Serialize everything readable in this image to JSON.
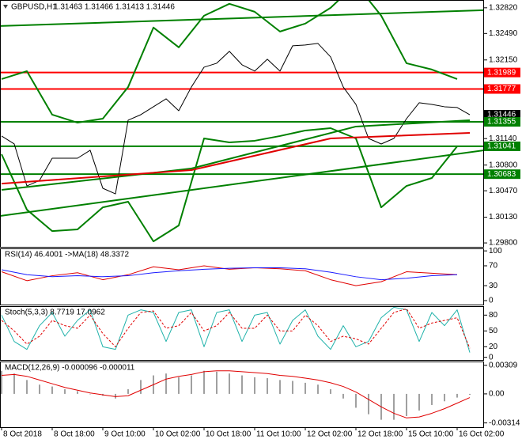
{
  "header": {
    "symbol": "GBPUSD,H1",
    "quote": "1.31463 1.31466 1.31413 1.31446"
  },
  "chart_data": [
    {
      "type": "line",
      "xlim": [
        -0.5,
        152.5
      ],
      "xticks": [
        {
          "value": 0,
          "label": "8 Oct 2018"
        },
        {
          "value": 16,
          "label": "8 Oct 18:00"
        },
        {
          "value": 32,
          "label": "9 Oct 10:00"
        },
        {
          "value": 48,
          "label": "10 Oct 02:00"
        },
        {
          "value": 64,
          "label": "10 Oct 18:00"
        },
        {
          "value": 80,
          "label": "11 Oct 10:00"
        },
        {
          "value": 96,
          "label": "12 Oct 02:00"
        },
        {
          "value": 112,
          "label": "12 Oct 18:00"
        },
        {
          "value": 128,
          "label": "15 Oct 10:00"
        },
        {
          "value": 144,
          "label": "16 Oct 02:00"
        }
      ],
      "ylim": [
        1.2975,
        1.3292
      ],
      "yticks": [
        {
          "value": 1.3282,
          "label": "1.32820"
        },
        {
          "value": 1.3249,
          "label": "1.32490"
        },
        {
          "value": 1.3215,
          "label": "1.32150"
        },
        {
          "value": 1.3114,
          "label": "1.31140"
        },
        {
          "value": 1.308,
          "label": "1.30800"
        },
        {
          "value": 1.3047,
          "label": "1.30470"
        },
        {
          "value": 1.3013,
          "label": "1.30130"
        },
        {
          "value": 1.298,
          "label": "1.29800"
        }
      ],
      "current_price": 1.31446,
      "levels": [
        {
          "value": 1.31989,
          "color": "#ff0000"
        },
        {
          "value": 1.31777,
          "color": "#ff0000"
        },
        {
          "value": 1.31355,
          "color": "#008000"
        },
        {
          "value": 1.31041,
          "color": "#008000"
        },
        {
          "value": 1.30683,
          "color": "#008000"
        }
      ],
      "trend_lines": [
        {
          "color": "#008000",
          "values": [
            1.32586,
            1.32789
          ]
        },
        {
          "color": "#008000",
          "values": [
            1.30146,
            1.3099
          ]
        }
      ],
      "series": [
        {
          "name": "Close",
          "color": "#000000",
          "style": "line",
          "width": 1,
          "x": [
            0,
            4,
            8,
            12,
            16,
            20,
            24,
            28,
            32,
            36,
            40,
            44,
            48,
            52,
            56,
            60,
            64,
            68,
            72,
            76,
            80,
            84,
            88,
            92,
            96,
            100,
            104,
            108,
            112,
            116,
            120,
            124,
            128,
            132,
            136,
            140,
            144,
            148
          ],
          "values": [
            1.31173,
            1.31071,
            1.30532,
            1.30603,
            1.30888,
            1.30888,
            1.30888,
            1.3099,
            1.30502,
            1.3043,
            1.31376,
            1.31447,
            1.31549,
            1.31651,
            1.31498,
            1.31803,
            1.32057,
            1.32108,
            1.32261,
            1.32088,
            1.32007,
            1.32159,
            1.32007,
            1.32332,
            1.32342,
            1.32362,
            1.32189,
            1.31803,
            1.31579,
            1.31142,
            1.31071,
            1.31142,
            1.31396,
            1.316,
            1.31579,
            1.31549,
            1.31539,
            1.31446
          ]
        },
        {
          "name": "BB Upper",
          "color": "#008000",
          "style": "line",
          "width": 2,
          "x": [
            0,
            8,
            16,
            24,
            32,
            40,
            48,
            56,
            64,
            72,
            80,
            88,
            96,
            104,
            112,
            120,
            128,
            136,
            144
          ],
          "values": [
            1.31905,
            1.32006,
            1.31447,
            1.31345,
            1.31396,
            1.31803,
            1.32566,
            1.32312,
            1.32718,
            1.32871,
            1.32769,
            1.32515,
            1.32617,
            1.3282,
            1.33125,
            1.32718,
            1.32108,
            1.32027,
            1.31905
          ]
        },
        {
          "name": "BB Lower",
          "color": "#008000",
          "style": "line",
          "width": 2,
          "x": [
            0,
            8,
            16,
            24,
            32,
            40,
            48,
            56,
            64,
            72,
            80,
            88,
            96,
            104,
            112,
            120,
            128,
            136,
            144
          ],
          "values": [
            1.30939,
            1.30227,
            1.29952,
            1.29973,
            1.30257,
            1.30329,
            1.2982,
            1.30024,
            1.31142,
            1.31091,
            1.31112,
            1.31173,
            1.31244,
            1.31274,
            1.31142,
            1.30257,
            1.30532,
            1.30634,
            1.3104
          ]
        },
        {
          "name": "MA 100",
          "color": "#008000",
          "style": "line",
          "width": 2,
          "x": [
            0,
            60,
            112,
            148
          ],
          "values": [
            1.30481,
            1.30756,
            1.31295,
            1.31376
          ]
        },
        {
          "name": "MA 200",
          "color": "#e00000",
          "style": "line",
          "width": 2,
          "x": [
            0,
            60,
            104,
            148
          ],
          "values": [
            1.30562,
            1.30735,
            1.31142,
            1.31213
          ]
        }
      ]
    },
    {
      "type": "line",
      "title": "RSI(14) 46.4001 ->MA(18) 48.3372",
      "ylim": [
        -8,
        105
      ],
      "yticks": [
        100,
        70,
        30,
        0
      ],
      "series": [
        {
          "name": "RSI",
          "color": "#e00000",
          "style": "line",
          "width": 1,
          "x": [
            0,
            8,
            16,
            24,
            32,
            40,
            48,
            56,
            64,
            72,
            80,
            88,
            96,
            104,
            112,
            120,
            128,
            136,
            144
          ],
          "values": [
            58,
            40,
            50,
            56,
            42,
            52,
            68,
            62,
            70,
            63,
            66,
            64,
            60,
            42,
            30,
            38,
            58,
            55,
            52
          ]
        },
        {
          "name": "MA",
          "color": "#1a1aff",
          "style": "line",
          "width": 1,
          "x": [
            0,
            8,
            16,
            24,
            32,
            40,
            48,
            56,
            64,
            72,
            80,
            88,
            96,
            104,
            112,
            120,
            128,
            136,
            144
          ],
          "values": [
            62,
            52,
            48,
            50,
            48,
            50,
            56,
            60,
            63,
            65,
            66,
            66,
            64,
            57,
            48,
            42,
            45,
            50,
            52
          ]
        }
      ]
    },
    {
      "type": "line",
      "title": "Stoch(5,3,3) 8.7719 17.0962",
      "ylim": [
        -5,
        97
      ],
      "yticks": [
        80,
        50,
        20,
        0
      ],
      "series": [
        {
          "name": "Main",
          "color": "#20b2aa",
          "style": "line",
          "width": 1,
          "x": [
            0,
            4,
            8,
            12,
            16,
            20,
            24,
            28,
            32,
            36,
            40,
            44,
            48,
            52,
            56,
            60,
            64,
            68,
            72,
            76,
            80,
            84,
            88,
            92,
            96,
            100,
            104,
            108,
            112,
            116,
            120,
            124,
            128,
            132,
            136,
            140,
            144,
            148
          ],
          "values": [
            80,
            30,
            15,
            60,
            85,
            40,
            70,
            90,
            20,
            15,
            80,
            90,
            85,
            30,
            85,
            90,
            20,
            85,
            90,
            30,
            80,
            85,
            25,
            70,
            90,
            40,
            15,
            60,
            20,
            30,
            75,
            95,
            90,
            30,
            85,
            60,
            90,
            9
          ]
        },
        {
          "name": "Signal",
          "color": "#e00000",
          "style": "dashed",
          "width": 1,
          "x": [
            0,
            4,
            8,
            12,
            16,
            20,
            24,
            28,
            32,
            36,
            40,
            44,
            48,
            52,
            56,
            60,
            64,
            68,
            72,
            76,
            80,
            84,
            88,
            92,
            96,
            100,
            104,
            108,
            112,
            116,
            120,
            124,
            128,
            132,
            136,
            140,
            144,
            148
          ],
          "values": [
            70,
            50,
            25,
            40,
            70,
            60,
            55,
            80,
            45,
            20,
            55,
            85,
            88,
            55,
            60,
            85,
            50,
            60,
            85,
            55,
            55,
            80,
            50,
            50,
            80,
            60,
            30,
            40,
            35,
            25,
            55,
            85,
            92,
            55,
            65,
            70,
            75,
            17
          ]
        }
      ]
    },
    {
      "type": "line",
      "title": "MACD(12,26,9) -0.000096 -0.000011",
      "ylim": [
        -0.0036,
        0.0035
      ],
      "yticks": [
        0.00309,
        {
          "value": 0,
          "label": "0.00"
        },
        -0.00314
      ],
      "series": [
        {
          "name": "MACD",
          "color": "#a0a0a0",
          "style": "bars",
          "width": 1,
          "x": [
            0,
            4,
            8,
            12,
            16,
            20,
            24,
            28,
            32,
            36,
            40,
            44,
            48,
            52,
            56,
            60,
            64,
            68,
            72,
            76,
            80,
            84,
            88,
            92,
            96,
            100,
            104,
            108,
            112,
            116,
            120,
            124,
            128,
            132,
            136,
            140,
            144,
            148
          ],
          "values": [
            0.0025,
            0.0022,
            0.0015,
            0.001,
            0.0008,
            0.0005,
            0.0003,
            0,
            -0.0002,
            -0.0005,
            0.0005,
            0.0015,
            0.002,
            0.0022,
            0.0018,
            0.002,
            0.0025,
            0.0024,
            0.0022,
            0.002,
            0.0018,
            0.0017,
            0.0015,
            0.0014,
            0.0012,
            0.001,
            0.0005,
            -0.0005,
            -0.0015,
            -0.0022,
            -0.0028,
            -0.0028,
            -0.0024,
            -0.0018,
            -0.0012,
            -0.0008,
            -0.0004,
            -0.0001
          ]
        },
        {
          "name": "Signal",
          "color": "#e00000",
          "style": "line",
          "width": 1,
          "x": [
            0,
            4,
            8,
            12,
            16,
            20,
            24,
            28,
            32,
            36,
            40,
            44,
            48,
            52,
            56,
            60,
            64,
            68,
            72,
            76,
            80,
            84,
            88,
            92,
            96,
            100,
            104,
            108,
            112,
            116,
            120,
            124,
            128,
            132,
            136,
            140,
            144,
            148
          ],
          "values": [
            0.002,
            0.0021,
            0.0019,
            0.0015,
            0.0011,
            0.0007,
            0.0004,
            0.0001,
            -0.0001,
            -0.0003,
            -0.0002,
            0.0004,
            0.001,
            0.0016,
            0.0019,
            0.0021,
            0.0024,
            0.0025,
            0.0025,
            0.0024,
            0.0023,
            0.0022,
            0.002,
            0.0019,
            0.0017,
            0.0015,
            0.0012,
            0.0008,
            0.0002,
            -0.0006,
            -0.0014,
            -0.0021,
            -0.0026,
            -0.0025,
            -0.0021,
            -0.0016,
            -0.001,
            -0.0004
          ]
        }
      ]
    }
  ]
}
